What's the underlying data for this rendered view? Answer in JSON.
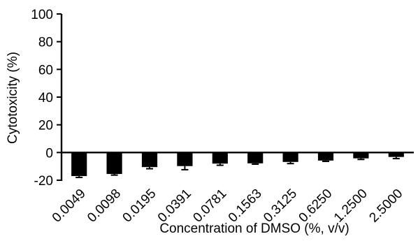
{
  "chart_data": {
    "type": "bar",
    "title": "",
    "xlabel": "Concentration of DMSO (%, v/v)",
    "ylabel": "Cytotoxicity (%)",
    "ylim": [
      -20,
      100
    ],
    "yticks": [
      -20,
      0,
      20,
      40,
      60,
      80,
      100
    ],
    "grid": false,
    "categories": [
      "0.0049",
      "0.0098",
      "0.0195",
      "0.0391",
      "0.0781",
      "0.1563",
      "0.3125",
      "0.6250",
      "1.2500",
      "2.5000"
    ],
    "values": [
      -17.0,
      -15.5,
      -10.5,
      -9.8,
      -8.0,
      -7.8,
      -6.8,
      -5.8,
      -4.2,
      -3.2
    ],
    "errors": [
      1.0,
      0.8,
      1.2,
      2.6,
      1.2,
      0.6,
      1.2,
      0.6,
      0.8,
      1.2
    ],
    "bar_color": "#000000"
  }
}
